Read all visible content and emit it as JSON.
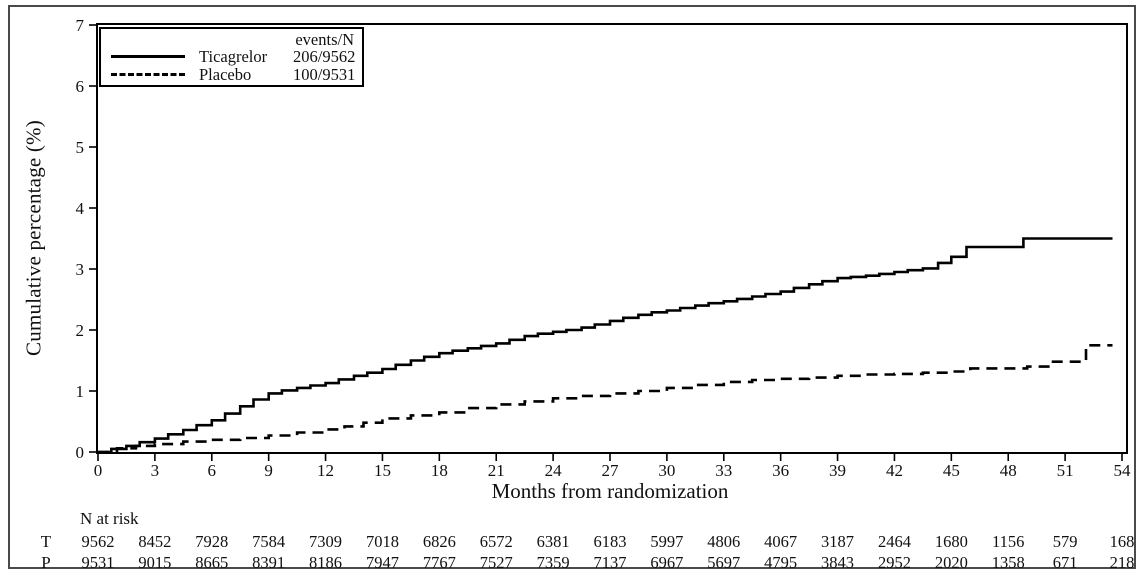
{
  "chart_data": {
    "type": "line",
    "step": "after",
    "title": "",
    "xlabel": "Months from randomization",
    "ylabel": "Cumulative percentage (%)",
    "xlim": [
      0,
      54
    ],
    "ylim": [
      0,
      7
    ],
    "x_ticks": [
      0,
      3,
      6,
      9,
      12,
      15,
      18,
      21,
      24,
      27,
      30,
      33,
      36,
      39,
      42,
      45,
      48,
      51,
      54
    ],
    "y_ticks": [
      0,
      1,
      2,
      3,
      4,
      5,
      6,
      7
    ],
    "grid": "off",
    "legend": {
      "header": "events/N",
      "position": "top-left"
    },
    "series": [
      {
        "name": "Ticagrelor",
        "line": "solid",
        "color": "#000000",
        "events_n": "206/9562",
        "points": [
          [
            0,
            0
          ],
          [
            0.7,
            0.05
          ],
          [
            1.5,
            0.1
          ],
          [
            2.2,
            0.16
          ],
          [
            3,
            0.22
          ],
          [
            3.7,
            0.29
          ],
          [
            4.5,
            0.36
          ],
          [
            5.2,
            0.44
          ],
          [
            6,
            0.52
          ],
          [
            6.7,
            0.63
          ],
          [
            7.5,
            0.75
          ],
          [
            8.2,
            0.86
          ],
          [
            9,
            0.96
          ],
          [
            9.7,
            1.01
          ],
          [
            10.5,
            1.05
          ],
          [
            11.2,
            1.09
          ],
          [
            12,
            1.13
          ],
          [
            12.7,
            1.19
          ],
          [
            13.5,
            1.25
          ],
          [
            14.2,
            1.3
          ],
          [
            15,
            1.36
          ],
          [
            15.7,
            1.43
          ],
          [
            16.5,
            1.5
          ],
          [
            17.2,
            1.56
          ],
          [
            18,
            1.62
          ],
          [
            18.7,
            1.66
          ],
          [
            19.5,
            1.7
          ],
          [
            20.2,
            1.74
          ],
          [
            21,
            1.78
          ],
          [
            21.7,
            1.84
          ],
          [
            22.5,
            1.9
          ],
          [
            23.2,
            1.94
          ],
          [
            24,
            1.97
          ],
          [
            24.7,
            2.0
          ],
          [
            25.5,
            2.04
          ],
          [
            26.2,
            2.09
          ],
          [
            27,
            2.15
          ],
          [
            27.7,
            2.2
          ],
          [
            28.5,
            2.25
          ],
          [
            29.2,
            2.29
          ],
          [
            30,
            2.32
          ],
          [
            30.7,
            2.36
          ],
          [
            31.5,
            2.4
          ],
          [
            32.2,
            2.44
          ],
          [
            33,
            2.47
          ],
          [
            33.7,
            2.51
          ],
          [
            34.5,
            2.55
          ],
          [
            35.2,
            2.59
          ],
          [
            36,
            2.63
          ],
          [
            36.7,
            2.69
          ],
          [
            37.5,
            2.75
          ],
          [
            38.2,
            2.8
          ],
          [
            39,
            2.85
          ],
          [
            39.7,
            2.87
          ],
          [
            40.5,
            2.89
          ],
          [
            41.2,
            2.92
          ],
          [
            42,
            2.95
          ],
          [
            42.7,
            2.98
          ],
          [
            43.5,
            3.01
          ],
          [
            44.3,
            3.1
          ],
          [
            45,
            3.2
          ],
          [
            45.8,
            3.36
          ],
          [
            48.8,
            3.5
          ],
          [
            53.5,
            3.5
          ]
        ]
      },
      {
        "name": "Placebo",
        "line": "dashed",
        "color": "#000000",
        "events_n": "100/9531",
        "points": [
          [
            0,
            0
          ],
          [
            1,
            0.06
          ],
          [
            2,
            0.1
          ],
          [
            3,
            0.13
          ],
          [
            4.5,
            0.17
          ],
          [
            6,
            0.2
          ],
          [
            7.5,
            0.23
          ],
          [
            9,
            0.27
          ],
          [
            10.5,
            0.32
          ],
          [
            12,
            0.37
          ],
          [
            13,
            0.42
          ],
          [
            14,
            0.48
          ],
          [
            15,
            0.55
          ],
          [
            16.5,
            0.6
          ],
          [
            18,
            0.65
          ],
          [
            19.5,
            0.72
          ],
          [
            21,
            0.78
          ],
          [
            22.5,
            0.83
          ],
          [
            24,
            0.88
          ],
          [
            25.5,
            0.92
          ],
          [
            27,
            0.96
          ],
          [
            28.5,
            1.0
          ],
          [
            30,
            1.05
          ],
          [
            31.5,
            1.1
          ],
          [
            33,
            1.15
          ],
          [
            34.5,
            1.18
          ],
          [
            36,
            1.2
          ],
          [
            37.5,
            1.22
          ],
          [
            39,
            1.25
          ],
          [
            40.5,
            1.27
          ],
          [
            42,
            1.28
          ],
          [
            43.5,
            1.3
          ],
          [
            45,
            1.32
          ],
          [
            46,
            1.37
          ],
          [
            49,
            1.4
          ],
          [
            50.2,
            1.48
          ],
          [
            52.1,
            1.75
          ],
          [
            53.5,
            1.75
          ]
        ]
      }
    ],
    "n_at_risk": {
      "title": "N at risk",
      "months": [
        0,
        3,
        6,
        9,
        12,
        15,
        18,
        21,
        24,
        27,
        30,
        33,
        36,
        39,
        42,
        45,
        48,
        51,
        54
      ],
      "rows": [
        {
          "label": "T",
          "values": [
            9562,
            8452,
            7928,
            7584,
            7309,
            7018,
            6826,
            6572,
            6381,
            6183,
            5997,
            4806,
            4067,
            3187,
            2464,
            1680,
            1156,
            579,
            168
          ]
        },
        {
          "label": "P",
          "values": [
            9531,
            9015,
            8665,
            8391,
            8186,
            7947,
            7767,
            7527,
            7359,
            7137,
            6967,
            5697,
            4795,
            3843,
            2952,
            2020,
            1358,
            671,
            218
          ]
        }
      ]
    }
  },
  "colors": {
    "axis": "#000000",
    "text": "#111111",
    "outer_border": "#4a4a4a",
    "background": "#ffffff"
  }
}
